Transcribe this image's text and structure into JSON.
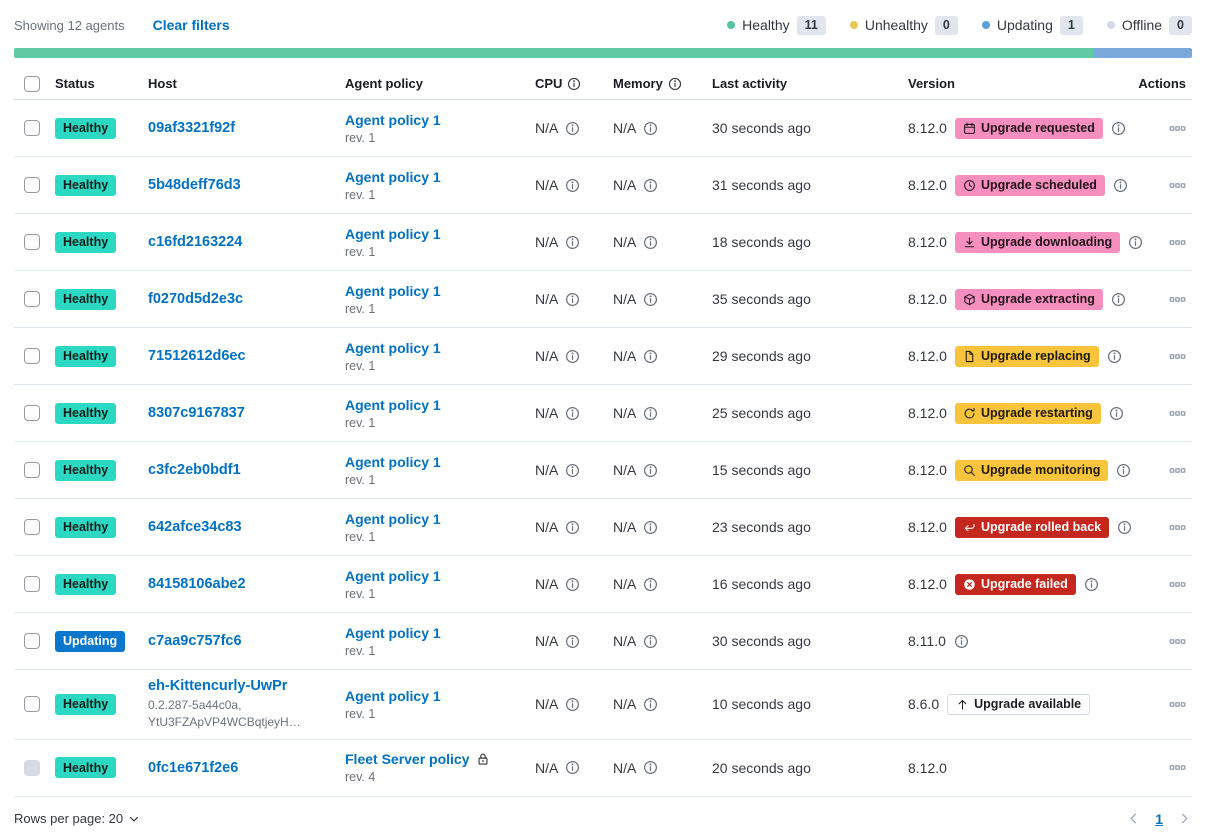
{
  "header": {
    "showing": "Showing 12 agents",
    "clear_filters": "Clear filters",
    "legend": [
      {
        "label": "Healthy",
        "count": "11",
        "color": "#54C3A2"
      },
      {
        "label": "Unhealthy",
        "count": "0",
        "color": "#E7C756"
      },
      {
        "label": "Updating",
        "count": "1",
        "color": "#5B9FD8"
      },
      {
        "label": "Offline",
        "count": "0",
        "color": "#D3DAE6"
      }
    ],
    "status_bar": [
      {
        "status": "healthy",
        "color": "#5FC9A4",
        "percent": 91.67
      },
      {
        "status": "updating",
        "color": "#79A9DB",
        "percent": 8.33
      }
    ]
  },
  "table": {
    "columns": {
      "status": "Status",
      "host": "Host",
      "policy": "Agent policy",
      "cpu": "CPU",
      "memory": "Memory",
      "last_activity": "Last activity",
      "version": "Version",
      "actions": "Actions"
    },
    "rows": [
      {
        "status": {
          "label": "Healthy",
          "bg": "#2BD9C3",
          "fg": "#0F1E1C"
        },
        "host": "09af3321f92f",
        "policy": {
          "name": "Agent policy 1",
          "rev": "rev. 1"
        },
        "cpu": "N/A",
        "memory": "N/A",
        "last_activity": "30 seconds ago",
        "version": "8.12.0",
        "upgrade": {
          "label": "Upgrade requested",
          "icon": "calendar-icon",
          "bg": "#F68FBE",
          "fg": "#20131A",
          "info": true
        }
      },
      {
        "status": {
          "label": "Healthy",
          "bg": "#2BD9C3",
          "fg": "#0F1E1C"
        },
        "host": "5b48deff76d3",
        "policy": {
          "name": "Agent policy 1",
          "rev": "rev. 1"
        },
        "cpu": "N/A",
        "memory": "N/A",
        "last_activity": "31 seconds ago",
        "version": "8.12.0",
        "upgrade": {
          "label": "Upgrade scheduled",
          "icon": "clock-icon",
          "bg": "#F68FBE",
          "fg": "#20131A",
          "info": true
        }
      },
      {
        "status": {
          "label": "Healthy",
          "bg": "#2BD9C3",
          "fg": "#0F1E1C"
        },
        "host": "c16fd2163224",
        "policy": {
          "name": "Agent policy 1",
          "rev": "rev. 1"
        },
        "cpu": "N/A",
        "memory": "N/A",
        "last_activity": "18 seconds ago",
        "version": "8.12.0",
        "upgrade": {
          "label": "Upgrade downloading",
          "icon": "download-icon",
          "bg": "#F68FBE",
          "fg": "#20131A",
          "info": true
        }
      },
      {
        "status": {
          "label": "Healthy",
          "bg": "#2BD9C3",
          "fg": "#0F1E1C"
        },
        "host": "f0270d5d2e3c",
        "policy": {
          "name": "Agent policy 1",
          "rev": "rev. 1"
        },
        "cpu": "N/A",
        "memory": "N/A",
        "last_activity": "35 seconds ago",
        "version": "8.12.0",
        "upgrade": {
          "label": "Upgrade extracting",
          "icon": "package-icon",
          "bg": "#F68FBE",
          "fg": "#20131A",
          "info": true
        }
      },
      {
        "status": {
          "label": "Healthy",
          "bg": "#2BD9C3",
          "fg": "#0F1E1C"
        },
        "host": "71512612d6ec",
        "policy": {
          "name": "Agent policy 1",
          "rev": "rev. 1"
        },
        "cpu": "N/A",
        "memory": "N/A",
        "last_activity": "29 seconds ago",
        "version": "8.12.0",
        "upgrade": {
          "label": "Upgrade replacing",
          "icon": "document-icon",
          "bg": "#F8C43C",
          "fg": "#1F1A07",
          "info": true
        }
      },
      {
        "status": {
          "label": "Healthy",
          "bg": "#2BD9C3",
          "fg": "#0F1E1C"
        },
        "host": "8307c9167837",
        "policy": {
          "name": "Agent policy 1",
          "rev": "rev. 1"
        },
        "cpu": "N/A",
        "memory": "N/A",
        "last_activity": "25 seconds ago",
        "version": "8.12.0",
        "upgrade": {
          "label": "Upgrade restarting",
          "icon": "refresh-icon",
          "bg": "#F8C43C",
          "fg": "#1F1A07",
          "info": true
        }
      },
      {
        "status": {
          "label": "Healthy",
          "bg": "#2BD9C3",
          "fg": "#0F1E1C"
        },
        "host": "c3fc2eb0bdf1",
        "policy": {
          "name": "Agent policy 1",
          "rev": "rev. 1"
        },
        "cpu": "N/A",
        "memory": "N/A",
        "last_activity": "15 seconds ago",
        "version": "8.12.0",
        "upgrade": {
          "label": "Upgrade monitoring",
          "icon": "inspect-icon",
          "bg": "#F8C43C",
          "fg": "#1F1A07",
          "info": true
        }
      },
      {
        "status": {
          "label": "Healthy",
          "bg": "#2BD9C3",
          "fg": "#0F1E1C"
        },
        "host": "642afce34c83",
        "policy": {
          "name": "Agent policy 1",
          "rev": "rev. 1"
        },
        "cpu": "N/A",
        "memory": "N/A",
        "last_activity": "23 seconds ago",
        "version": "8.12.0",
        "upgrade": {
          "label": "Upgrade rolled back",
          "icon": "return-icon",
          "bg": "#C4271E",
          "fg": "#FFFFFF",
          "info": true
        }
      },
      {
        "status": {
          "label": "Healthy",
          "bg": "#2BD9C3",
          "fg": "#0F1E1C"
        },
        "host": "84158106abe2",
        "policy": {
          "name": "Agent policy 1",
          "rev": "rev. 1"
        },
        "cpu": "N/A",
        "memory": "N/A",
        "last_activity": "16 seconds ago",
        "version": "8.12.0",
        "upgrade": {
          "label": "Upgrade failed",
          "icon": "error-icon",
          "bg": "#C4271E",
          "fg": "#FFFFFF",
          "info": true
        }
      },
      {
        "status": {
          "label": "Updating",
          "bg": "#0B77CC",
          "fg": "#FFFFFF"
        },
        "host": "c7aa9c757fc6",
        "policy": {
          "name": "Agent policy 1",
          "rev": "rev. 1"
        },
        "cpu": "N/A",
        "memory": "N/A",
        "last_activity": "30 seconds ago",
        "version": "8.11.0",
        "upgrade": null,
        "version_info": true
      },
      {
        "status": {
          "label": "Healthy",
          "bg": "#2BD9C3",
          "fg": "#0F1E1C"
        },
        "host": "eh-Kittencurly-UwPr",
        "host_sub": "0.2.287-5a44c0a,\nYtU3FZApVP4WCBqtjeyH…",
        "policy": {
          "name": "Agent policy 1",
          "rev": "rev. 1"
        },
        "cpu": "N/A",
        "memory": "N/A",
        "last_activity": "10 seconds ago",
        "version": "8.6.0",
        "upgrade": {
          "label": "Upgrade available",
          "icon": "arrow-up-icon",
          "bg": "#FFFFFF",
          "fg": "#1A1C21",
          "border": "#D3DAE6",
          "info": false
        }
      },
      {
        "status": {
          "label": "Healthy",
          "bg": "#2BD9C3",
          "fg": "#0F1E1C"
        },
        "host": "0fc1e671f2e6",
        "policy": {
          "name": "Fleet Server policy",
          "rev": "rev. 4",
          "lock": true
        },
        "cpu": "N/A",
        "memory": "N/A",
        "last_activity": "20 seconds ago",
        "version": "8.12.0",
        "upgrade": null,
        "checkbox_disabled": true
      }
    ]
  },
  "footer": {
    "rows_per_page": "Rows per page: 20",
    "page": "1"
  }
}
